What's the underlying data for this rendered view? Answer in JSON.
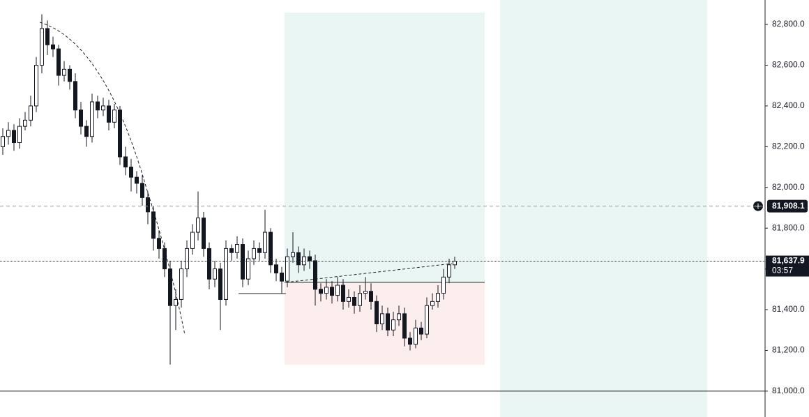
{
  "chart_data": {
    "type": "candlestick",
    "ohlc": [
      [
        82200,
        82290,
        82160,
        82250
      ],
      [
        82250,
        82320,
        82210,
        82280
      ],
      [
        82280,
        82310,
        82180,
        82220
      ],
      [
        82220,
        82340,
        82190,
        82300
      ],
      [
        82300,
        82370,
        82280,
        82330
      ],
      [
        82330,
        82450,
        82300,
        82400
      ],
      [
        82400,
        82640,
        82370,
        82600
      ],
      [
        82600,
        82850,
        82560,
        82780
      ],
      [
        82780,
        82820,
        82650,
        82700
      ],
      [
        82700,
        82740,
        82640,
        82680
      ],
      [
        82680,
        82700,
        82500,
        82550
      ],
      [
        82550,
        82620,
        82520,
        82580
      ],
      [
        82580,
        82600,
        82480,
        82520
      ],
      [
        82520,
        82560,
        82340,
        82380
      ],
      [
        82380,
        82420,
        82260,
        82300
      ],
      [
        82300,
        82330,
        82200,
        82250
      ],
      [
        82250,
        82460,
        82220,
        82420
      ],
      [
        82420,
        82450,
        82340,
        82380
      ],
      [
        82380,
        82440,
        82350,
        82400
      ],
      [
        82400,
        82430,
        82280,
        82320
      ],
      [
        82320,
        82410,
        82290,
        82380
      ],
      [
        82380,
        82400,
        82110,
        82150
      ],
      [
        82150,
        82200,
        82060,
        82100
      ],
      [
        82100,
        82140,
        81980,
        82050
      ],
      [
        82050,
        82080,
        81970,
        82020
      ],
      [
        82020,
        82060,
        81910,
        81950
      ],
      [
        81950,
        81980,
        81820,
        81880
      ],
      [
        81880,
        81910,
        81690,
        81750
      ],
      [
        81750,
        81790,
        81650,
        81700
      ],
      [
        81700,
        81730,
        81560,
        81600
      ],
      [
        81600,
        81640,
        81130,
        81420
      ],
      [
        81420,
        81500,
        81300,
        81450
      ],
      [
        81450,
        81640,
        81410,
        81600
      ],
      [
        81600,
        81740,
        81560,
        81700
      ],
      [
        81700,
        81820,
        81670,
        81780
      ],
      [
        81780,
        81980,
        81740,
        81850
      ],
      [
        81850,
        81880,
        81660,
        81700
      ],
      [
        81700,
        81730,
        81500,
        81550
      ],
      [
        81550,
        81640,
        81510,
        81600
      ],
      [
        81600,
        81630,
        81300,
        81450
      ],
      [
        81450,
        81740,
        81420,
        81700
      ],
      [
        81700,
        81720,
        81640,
        81680
      ],
      [
        81680,
        81760,
        81650,
        81720
      ],
      [
        81720,
        81750,
        81510,
        81550
      ],
      [
        81550,
        81690,
        81520,
        81650
      ],
      [
        81650,
        81740,
        81620,
        81700
      ],
      [
        81700,
        81730,
        81640,
        81680
      ],
      [
        81680,
        81890,
        81650,
        81780
      ],
      [
        81780,
        81800,
        81580,
        81620
      ],
      [
        81620,
        81650,
        81540,
        81580
      ],
      [
        81580,
        81610,
        81480,
        81540
      ],
      [
        81540,
        81700,
        81510,
        81660
      ],
      [
        81660,
        81780,
        81630,
        81680
      ],
      [
        81680,
        81710,
        81580,
        81620
      ],
      [
        81620,
        81700,
        81590,
        81660
      ],
      [
        81660,
        81690,
        81600,
        81640
      ],
      [
        81640,
        81670,
        81420,
        81500
      ],
      [
        81500,
        81530,
        81440,
        81480
      ],
      [
        81480,
        81550,
        81450,
        81510
      ],
      [
        81510,
        81540,
        81430,
        81470
      ],
      [
        81470,
        81560,
        81440,
        81520
      ],
      [
        81520,
        81550,
        81400,
        81440
      ],
      [
        81440,
        81500,
        81410,
        81460
      ],
      [
        81460,
        81490,
        81380,
        81420
      ],
      [
        81420,
        81520,
        81390,
        81480
      ],
      [
        81480,
        81560,
        81450,
        81490
      ],
      [
        81490,
        81530,
        81400,
        81440
      ],
      [
        81440,
        81470,
        81290,
        81330
      ],
      [
        81330,
        81420,
        81300,
        81380
      ],
      [
        81380,
        81410,
        81270,
        81300
      ],
      [
        81300,
        81390,
        81270,
        81350
      ],
      [
        81350,
        81420,
        81320,
        81380
      ],
      [
        81380,
        81410,
        81220,
        81260
      ],
      [
        81260,
        81290,
        81200,
        81230
      ],
      [
        81230,
        81350,
        81210,
        81310
      ],
      [
        81310,
        81340,
        81250,
        81280
      ],
      [
        81280,
        81460,
        81260,
        81420
      ],
      [
        81420,
        81480,
        81400,
        81440
      ],
      [
        81440,
        81520,
        81410,
        81480
      ],
      [
        81480,
        81600,
        81450,
        81560
      ],
      [
        81560,
        81650,
        81530,
        81620
      ],
      [
        81620,
        81660,
        81600,
        81637.9
      ]
    ],
    "ylim": [
      80873,
      82920
    ],
    "yticks": [
      {
        "value": 81000,
        "label": "81,000.0"
      },
      {
        "value": 81200,
        "label": "81,200.0"
      },
      {
        "value": 81400,
        "label": "81,400.0"
      },
      {
        "value": 81600,
        "label": "81,600.0"
      },
      {
        "value": 81800,
        "label": "81,800.0"
      },
      {
        "value": 82000,
        "label": "82,000.0"
      },
      {
        "value": 82200,
        "label": "82,200.0"
      },
      {
        "value": 82400,
        "label": "82,400.0"
      },
      {
        "value": 82600,
        "label": "82,600.0"
      },
      {
        "value": 82800,
        "label": "82,800.0"
      }
    ],
    "crosshair": {
      "value": 81908.1,
      "label": "81,908.1"
    },
    "last_price": {
      "value": 81637.9,
      "label": "81,637.9",
      "countdown": "03:57"
    },
    "level_line": 81000,
    "position": {
      "target": 82858,
      "entry": 81534,
      "stop": 81130
    }
  }
}
